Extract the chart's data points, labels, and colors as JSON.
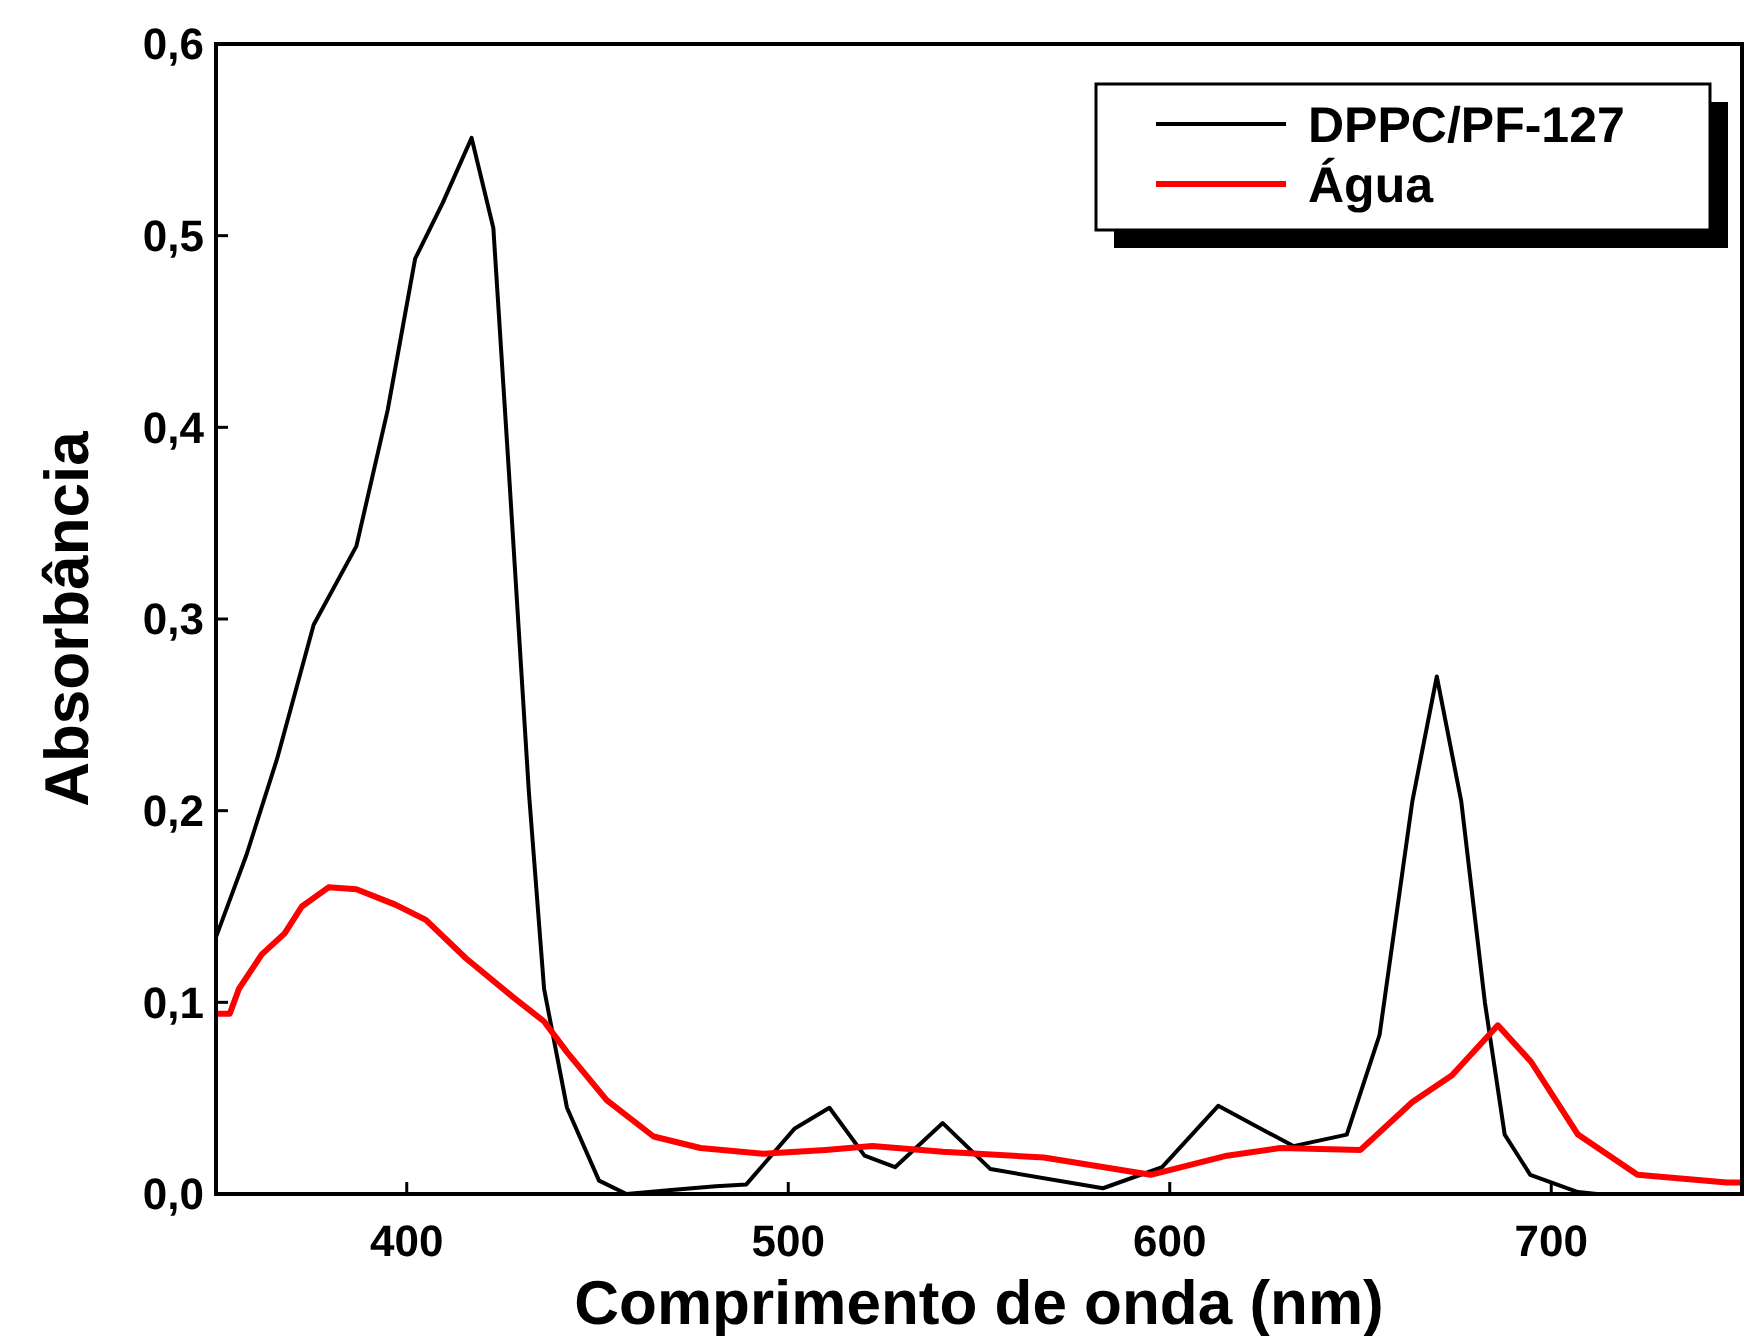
{
  "chart_data": {
    "type": "line",
    "xlabel": "Comprimento de onda (nm)",
    "ylabel": "Absorbância",
    "xlim": [
      350,
      750
    ],
    "xticks": [
      400,
      500,
      600,
      700
    ],
    "ylim": [
      0,
      0.6
    ],
    "yticks": [
      {
        "value": 0,
        "label": "0,0"
      },
      {
        "value": 0.1,
        "label": "0,1"
      },
      {
        "value": 0.2,
        "label": "0,2"
      },
      {
        "value": 0.3,
        "label": "0,3"
      },
      {
        "value": 0.4,
        "label": "0,4"
      },
      {
        "value": 0.5,
        "label": "0,5"
      },
      {
        "value": 0.6,
        "label": "0,6"
      }
    ],
    "grid": false,
    "legend": "top right",
    "marker": "none",
    "line_style": "solid",
    "series": [
      {
        "name": "DPPC/PF-127",
        "color": "#000000",
        "x": [
          350,
          358,
          366,
          375.6,
          386.8,
          395,
          402.2,
          409.4,
          417,
          422.7,
          426.8,
          432,
          436,
          442,
          450.4,
          457.6,
          468.6,
          481,
          489,
          501.6,
          510.8,
          520,
          528,
          540.5,
          553,
          582.5,
          598,
          612.7,
          632.4,
          646.4,
          655,
          663.6,
          670,
          676.4,
          682.6,
          687.8,
          694.5,
          707,
          712,
          720
        ],
        "values": [
          0.134,
          0.177,
          0.227,
          0.297,
          0.338,
          0.409,
          0.488,
          0.517,
          0.551,
          0.504,
          0.376,
          0.21,
          0.107,
          0.045,
          0.007,
          0.0,
          0.002,
          0.004,
          0.005,
          0.034,
          0.045,
          0.02,
          0.014,
          0.037,
          0.013,
          0.003,
          0.014,
          0.046,
          0.025,
          0.031,
          0.083,
          0.205,
          0.27,
          0.205,
          0.1,
          0.031,
          0.01,
          0.001,
          0.0,
          0.0
        ]
      },
      {
        "name": "Água",
        "color": "#ff0000",
        "x": [
          350,
          353.6,
          356,
          362,
          368,
          372.5,
          379.5,
          386.8,
          397,
          405,
          415.5,
          427.7,
          436,
          442,
          452.4,
          464.7,
          477,
          493.4,
          509.8,
          522,
          540.5,
          567,
          595,
          615,
          629,
          650,
          663.6,
          674,
          686,
          694.7,
          707,
          722.6,
          746,
          750
        ],
        "values": [
          0.094,
          0.094,
          0.107,
          0.125,
          0.136,
          0.15,
          0.16,
          0.159,
          0.151,
          0.143,
          0.123,
          0.103,
          0.09,
          0.074,
          0.049,
          0.03,
          0.024,
          0.021,
          0.023,
          0.025,
          0.022,
          0.019,
          0.01,
          0.02,
          0.024,
          0.023,
          0.048,
          0.062,
          0.088,
          0.069,
          0.031,
          0.01,
          0.006,
          0.006
        ]
      }
    ]
  }
}
